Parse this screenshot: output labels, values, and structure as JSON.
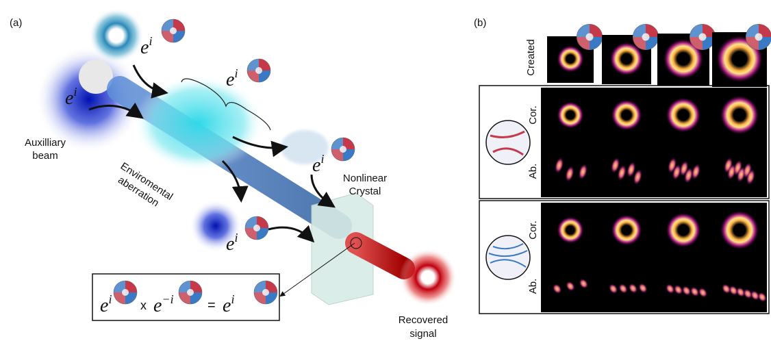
{
  "panel_a": {
    "label": "(a)",
    "phase_base": "e",
    "phase_exponent": "i",
    "negative_exponent": "−i",
    "auxiliary_beam": [
      "Auxilliary",
      "beam"
    ],
    "aberration": [
      "Enviromental",
      "aberration"
    ],
    "crystal": [
      "Nonlinear",
      "Crystal"
    ],
    "recovered": [
      "Recovered",
      "signal"
    ],
    "times": "x",
    "equals": "="
  },
  "panel_b": {
    "label": "(b)",
    "created": "Created",
    "corrected": "Cor.",
    "aberrated": "Ab."
  }
}
